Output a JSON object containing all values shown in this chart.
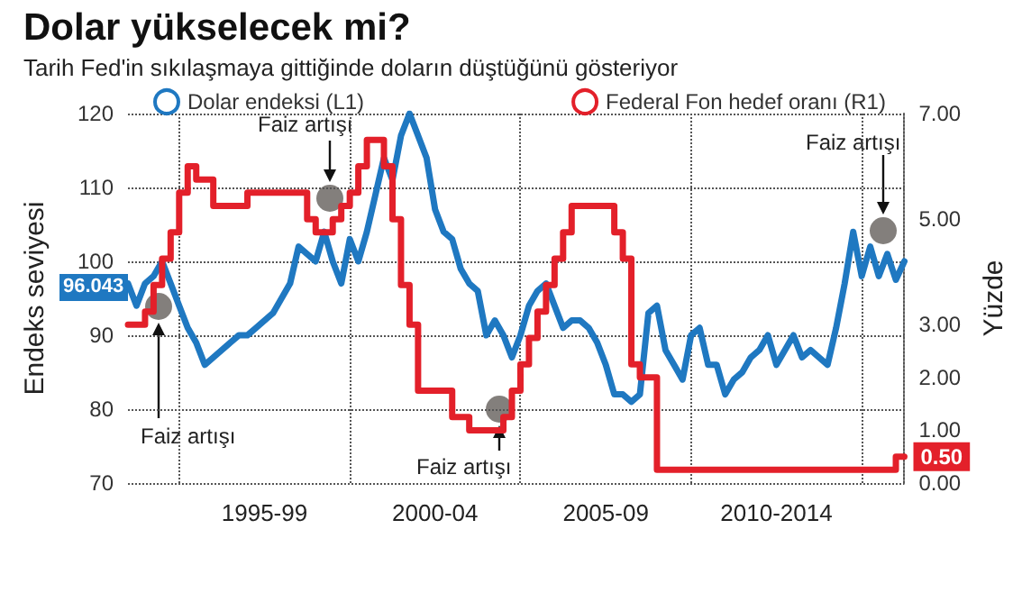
{
  "chart_data": {
    "type": "line",
    "title": "Dolar yükselecek mi?",
    "subtitle": "Tarih Fed'in sıkılaşmaya gittiğinde doların düştüğünü gösteriyor",
    "ylabel": "Endeks seviyesi",
    "y2label": "Yüzde",
    "categories": [
      null,
      null,
      null,
      null,
      null,
      null,
      null,
      null,
      null,
      null,
      null,
      null,
      null,
      null,
      null,
      null,
      "1995-99",
      null,
      null,
      null,
      null,
      null,
      null,
      null,
      null,
      null,
      null,
      null,
      null,
      null,
      null,
      null,
      null,
      null,
      null,
      null,
      "2000-04",
      null,
      null,
      null,
      null,
      null,
      null,
      null,
      null,
      null,
      null,
      null,
      null,
      null,
      null,
      null,
      null,
      null,
      null,
      null,
      "2005-09",
      null,
      null,
      null,
      null,
      null,
      null,
      null,
      null,
      null,
      null,
      null,
      null,
      null,
      null,
      null,
      null,
      null,
      null,
      null,
      "2010-2014",
      null,
      null,
      null,
      null,
      null,
      null,
      null,
      null,
      null,
      null,
      null,
      null,
      null,
      null,
      null
    ],
    "ylim": [
      70,
      120
    ],
    "yticks": [
      70,
      80,
      90,
      100,
      110,
      120
    ],
    "y2lim": [
      0,
      7
    ],
    "y2ticks": [
      {
        "value": 0,
        "label": "0.00"
      },
      {
        "value": 1,
        "label": "1.00"
      },
      {
        "value": 2,
        "label": "2.00"
      },
      {
        "value": 3,
        "label": "3.00"
      },
      {
        "value": 5,
        "label": "5.00"
      },
      {
        "value": 7,
        "label": "7.00"
      }
    ],
    "grid": true,
    "legend": "top",
    "series": [
      {
        "name": "Dolar endeksi (L1)",
        "color": "#1f78c1",
        "values": [
          97,
          94,
          97,
          98,
          100,
          97,
          94,
          91,
          89,
          86,
          87,
          88,
          89,
          90,
          90,
          91,
          92,
          93,
          95,
          97,
          102,
          101,
          100,
          104,
          100,
          97,
          103,
          100,
          104,
          109,
          114,
          111,
          117,
          120,
          117,
          114,
          107,
          104,
          103,
          99,
          97,
          96,
          90,
          92,
          90,
          87,
          90,
          94,
          96,
          97,
          94,
          91,
          92,
          92,
          91,
          89,
          86,
          82,
          82,
          81,
          82,
          93,
          94,
          88,
          86,
          84,
          90,
          91,
          86,
          86,
          82,
          84,
          85,
          87,
          88,
          90,
          86,
          88,
          90,
          87,
          88,
          87,
          86,
          91,
          97,
          104,
          98,
          102,
          98,
          101,
          97.5,
          100
        ]
      },
      {
        "name": "Federal Fon hedef oranı (R1)",
        "type": "step",
        "axis": "y2",
        "color": "#e3202a",
        "values": [
          3.0,
          3.0,
          3.25,
          3.75,
          4.25,
          4.75,
          5.5,
          6.0,
          5.75,
          5.75,
          5.25,
          5.25,
          5.25,
          5.25,
          5.5,
          5.5,
          5.5,
          5.5,
          5.5,
          5.5,
          5.5,
          5.0,
          4.75,
          4.75,
          5.0,
          5.25,
          5.5,
          6.0,
          6.5,
          6.5,
          6.0,
          5.0,
          3.75,
          3.0,
          1.75,
          1.75,
          1.75,
          1.75,
          1.25,
          1.25,
          1.0,
          1.0,
          1.0,
          1.0,
          1.25,
          1.75,
          2.25,
          2.75,
          3.25,
          3.75,
          4.25,
          4.75,
          5.25,
          5.25,
          5.25,
          5.25,
          5.25,
          4.75,
          4.25,
          2.25,
          2.0,
          2.0,
          0.25,
          0.25,
          0.25,
          0.25,
          0.25,
          0.25,
          0.25,
          0.25,
          0.25,
          0.25,
          0.25,
          0.25,
          0.25,
          0.25,
          0.25,
          0.25,
          0.25,
          0.25,
          0.25,
          0.25,
          0.25,
          0.25,
          0.25,
          0.25,
          0.25,
          0.25,
          0.25,
          0.25,
          0.5,
          0.5
        ],
        "value_labels": [
          null,
          null,
          null,
          null,
          null,
          null,
          null,
          null,
          null,
          null,
          null,
          null,
          null,
          null,
          null,
          null,
          null,
          null,
          null,
          null,
          null,
          null,
          null,
          null,
          null,
          null,
          null,
          null,
          null,
          null,
          null,
          null,
          null,
          null,
          null,
          null,
          null,
          null,
          null,
          null,
          null,
          null,
          null,
          null,
          null,
          null,
          null,
          null,
          null,
          null,
          null,
          null,
          null,
          null,
          null,
          null,
          null,
          null,
          null,
          null,
          null,
          null,
          null,
          null,
          null,
          null,
          null,
          null,
          null,
          null,
          null,
          null,
          null,
          null,
          null,
          null,
          null,
          null,
          null,
          null,
          null,
          null,
          null,
          null,
          null,
          null,
          null,
          null,
          null,
          null,
          null,
          "0.50"
        ]
      }
    ],
    "annotations": [
      "Faiz artışı",
      "Faiz artışı",
      "Faiz artışı",
      "Faiz artışı",
      "96.043"
    ]
  }
}
